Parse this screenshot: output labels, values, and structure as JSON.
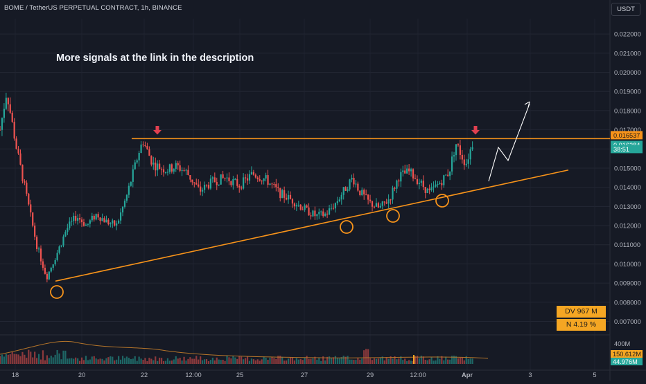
{
  "header": {
    "title": "BOME / TetherUS PERPETUAL CONTRACT, 1h, BINANCE",
    "currency_button": "USDT"
  },
  "annotation_text": "More signals at the link in the description",
  "colors": {
    "background": "#161a25",
    "up": "#26a69a",
    "down": "#ef5350",
    "trendline": "#f7931a",
    "marker": "#e04050",
    "stat_box": "#f5a623"
  },
  "chart_data": {
    "type": "candlestick",
    "symbol": "BOME / TetherUS PERPETUAL CONTRACT",
    "timeframe": "1h",
    "exchange": "BINANCE",
    "y_axis": {
      "ticks": [
        "0.022000",
        "0.021000",
        "0.020000",
        "0.019000",
        "0.018000",
        "0.017000",
        "0.016000",
        "0.015000",
        "0.014000",
        "0.013000",
        "0.012000",
        "0.011000",
        "0.010000",
        "0.009000",
        "0.008000",
        "0.007000"
      ],
      "range": [
        0.0068,
        0.0228
      ]
    },
    "x_axis": {
      "ticks": [
        "18",
        "20",
        "22",
        "12:00",
        "25",
        "27",
        "29",
        "12:00",
        "Apr",
        "3",
        "5"
      ],
      "bold_tick": "Apr"
    },
    "price_path": [
      {
        "x": 0.0,
        "price": 0.017
      },
      {
        "x": 0.02,
        "price": 0.019
      },
      {
        "x": 0.05,
        "price": 0.016
      },
      {
        "x": 0.08,
        "price": 0.0135
      },
      {
        "x": 0.11,
        "price": 0.011
      },
      {
        "x": 0.14,
        "price": 0.0093
      },
      {
        "x": 0.17,
        "price": 0.0105
      },
      {
        "x": 0.2,
        "price": 0.0118
      },
      {
        "x": 0.23,
        "price": 0.0125
      },
      {
        "x": 0.26,
        "price": 0.012
      },
      {
        "x": 0.29,
        "price": 0.0126
      },
      {
        "x": 0.32,
        "price": 0.0122
      },
      {
        "x": 0.35,
        "price": 0.012
      },
      {
        "x": 0.38,
        "price": 0.0135
      },
      {
        "x": 0.42,
        "price": 0.016
      },
      {
        "x": 0.43,
        "price": 0.0164
      },
      {
        "x": 0.46,
        "price": 0.0152
      },
      {
        "x": 0.5,
        "price": 0.0149
      },
      {
        "x": 0.53,
        "price": 0.0151
      },
      {
        "x": 0.56,
        "price": 0.0148
      },
      {
        "x": 0.6,
        "price": 0.0138
      },
      {
        "x": 0.64,
        "price": 0.0143
      },
      {
        "x": 0.68,
        "price": 0.0145
      },
      {
        "x": 0.72,
        "price": 0.0141
      },
      {
        "x": 0.76,
        "price": 0.0147
      },
      {
        "x": 0.8,
        "price": 0.0144
      },
      {
        "x": 0.84,
        "price": 0.0137
      },
      {
        "x": 0.88,
        "price": 0.0133
      },
      {
        "x": 0.92,
        "price": 0.0128
      },
      {
        "x": 0.95,
        "price": 0.0125
      },
      {
        "x": 0.98,
        "price": 0.0126
      },
      {
        "x": 1.01,
        "price": 0.0132
      },
      {
        "x": 1.04,
        "price": 0.014
      },
      {
        "x": 1.06,
        "price": 0.0145
      },
      {
        "x": 1.08,
        "price": 0.0138
      },
      {
        "x": 1.11,
        "price": 0.0132
      },
      {
        "x": 1.14,
        "price": 0.0129
      },
      {
        "x": 1.17,
        "price": 0.0134
      },
      {
        "x": 1.2,
        "price": 0.0146
      },
      {
        "x": 1.23,
        "price": 0.0148
      },
      {
        "x": 1.26,
        "price": 0.0143
      },
      {
        "x": 1.29,
        "price": 0.0137
      },
      {
        "x": 1.32,
        "price": 0.0142
      },
      {
        "x": 1.35,
        "price": 0.0148
      },
      {
        "x": 1.37,
        "price": 0.0163
      },
      {
        "x": 1.4,
        "price": 0.0152
      },
      {
        "x": 1.42,
        "price": 0.0163
      }
    ],
    "resistance_level": 0.016537,
    "support_line": {
      "start_price": 0.0091,
      "end_price": 0.0149
    },
    "price_labels": [
      {
        "text": "0.016537",
        "price": 0.016537,
        "color": "#f7931a"
      },
      {
        "text": "0.016284",
        "price": 0.016284,
        "color": "#26a69a"
      },
      {
        "text": "38:51",
        "price": 0.016284,
        "color": "#26a69a",
        "secondary": true
      }
    ],
    "stat_labels": [
      "DV 967 M",
      "N 4.19 %"
    ],
    "volume": {
      "ticks": [
        "400M"
      ],
      "labels": [
        {
          "text": "150.612M",
          "color": "#f5a623"
        },
        {
          "text": "44.976M",
          "color": "#26a69a"
        }
      ]
    }
  }
}
